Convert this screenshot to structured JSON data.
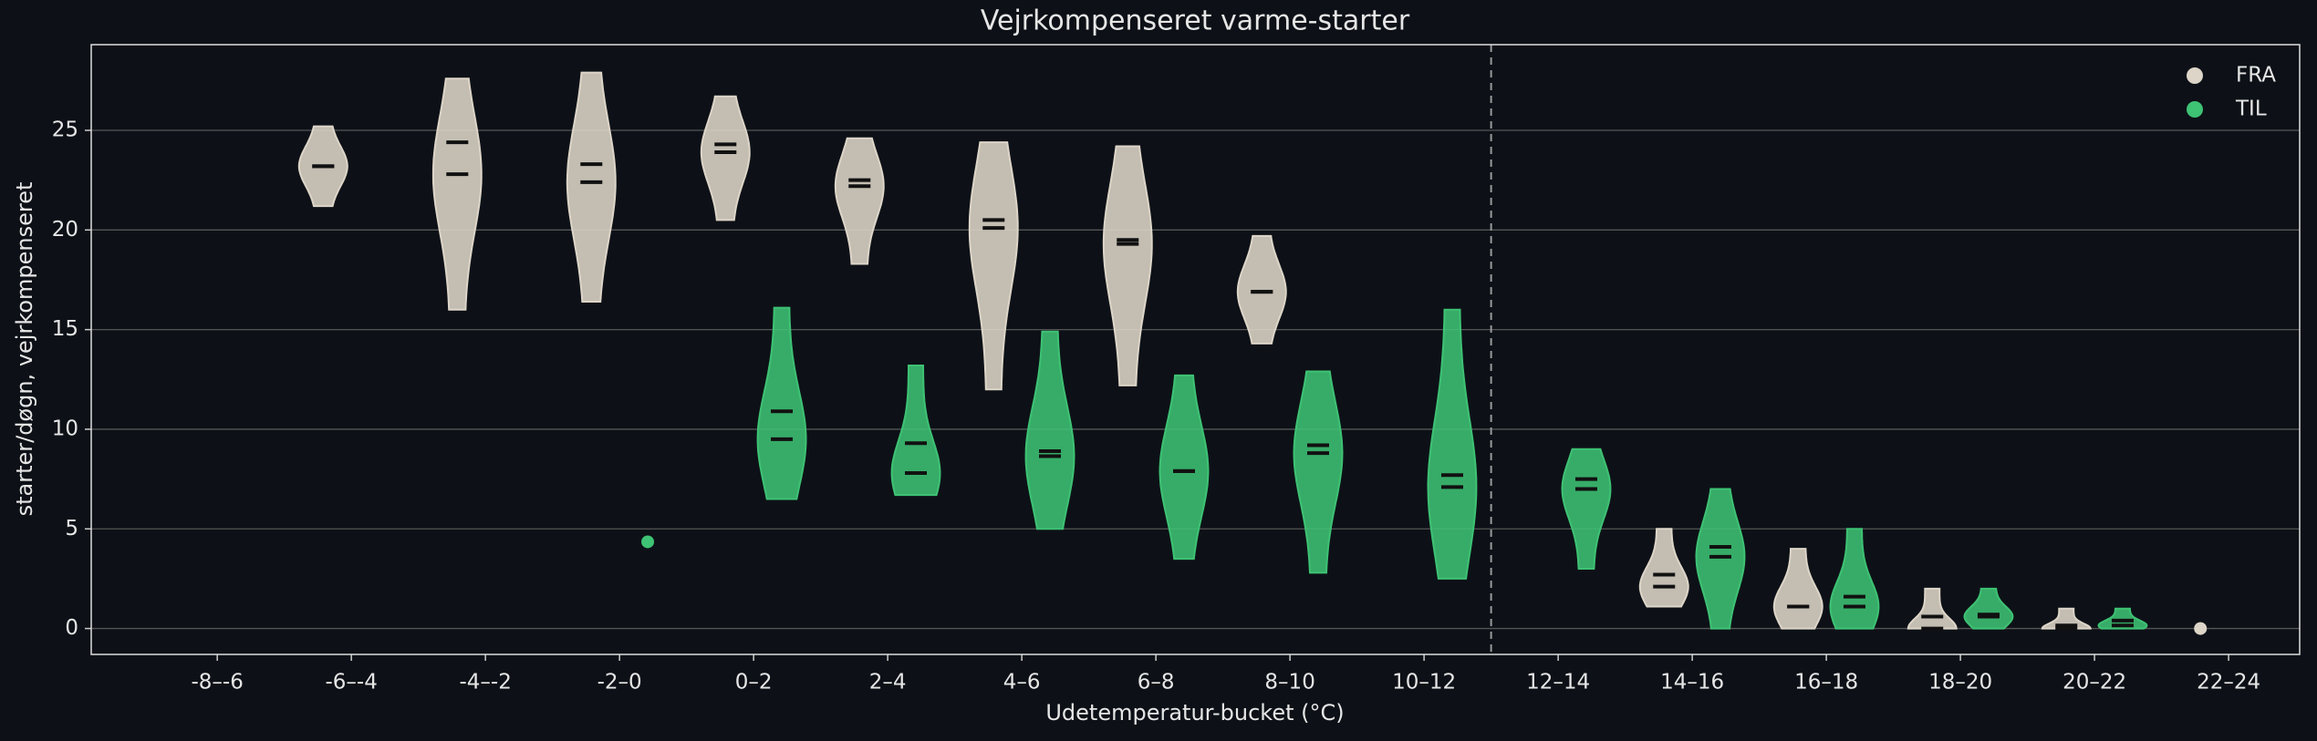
{
  "chart_data": {
    "type": "violin",
    "title": "Vejrkompenseret varme-starter",
    "xlabel": "Udetemperatur-bucket (°C)",
    "ylabel": "starter/døgn, vejrkompenseret",
    "categories": [
      "-8–-6",
      "-6–-4",
      "-4–-2",
      "-2–0",
      "0–2",
      "2–4",
      "4–6",
      "6–8",
      "8–10",
      "10–12",
      "12–14",
      "14–16",
      "16–18",
      "18–20",
      "20–22",
      "22–24"
    ],
    "ylim": [
      -1.3,
      29.3
    ],
    "yticks": [
      0,
      5,
      10,
      15,
      20,
      25
    ],
    "grid": true,
    "legend": "upper right",
    "vline_after_category": 9,
    "series": [
      {
        "name": "FRA",
        "color": "#ddd5c8",
        "stats": [
          null,
          {
            "min": 21.2,
            "max": 25.2,
            "mean": 23.2,
            "median": 23.2
          },
          {
            "min": 16.0,
            "max": 27.6,
            "mean": 24.4,
            "median": 22.8
          },
          {
            "min": 16.4,
            "max": 27.9,
            "mean": 23.3,
            "median": 22.4
          },
          {
            "min": 20.5,
            "max": 26.7,
            "mean": 24.3,
            "median": 23.9
          },
          {
            "min": 18.3,
            "max": 24.6,
            "mean": 22.5,
            "median": 22.2
          },
          {
            "min": 12.0,
            "max": 24.4,
            "mean": 20.5,
            "median": 20.1
          },
          {
            "min": 12.2,
            "max": 24.2,
            "mean": 19.5,
            "median": 19.3
          },
          {
            "min": 14.3,
            "max": 19.7,
            "mean": 16.9,
            "median": 16.9
          },
          null,
          null,
          {
            "min": 1.1,
            "max": 5.0,
            "mean": 2.7,
            "median": 2.1
          },
          {
            "min": 0,
            "max": 4.0,
            "mean": 1.1,
            "median": 1.1
          },
          {
            "min": 0,
            "max": 2.0,
            "mean": 0.6,
            "median": 0
          },
          {
            "min": 0,
            "max": 1.0,
            "mean": 0.15,
            "median": 0
          },
          {
            "min": 0,
            "max": 0,
            "mean": 0,
            "median": 0
          }
        ]
      },
      {
        "name": "TIL",
        "color": "#3ec274",
        "stats": [
          null,
          null,
          null,
          {
            "min": 4.35,
            "max": 4.35,
            "mean": 4.35,
            "median": 4.35
          },
          {
            "min": 6.5,
            "max": 16.1,
            "mean": 10.9,
            "median": 9.5
          },
          {
            "min": 6.7,
            "max": 13.2,
            "mean": 9.3,
            "median": 7.8
          },
          {
            "min": 5.0,
            "max": 14.9,
            "mean": 8.9,
            "median": 8.65
          },
          {
            "min": 3.5,
            "max": 12.7,
            "mean": 7.9,
            "median": 7.9
          },
          {
            "min": 2.8,
            "max": 12.9,
            "mean": 9.2,
            "median": 8.8
          },
          {
            "min": 2.5,
            "max": 16.0,
            "mean": 7.7,
            "median": 7.1
          },
          {
            "min": 3.0,
            "max": 9.0,
            "mean": 7.5,
            "median": 7.0
          },
          {
            "min": 0,
            "max": 7.0,
            "mean": 4.1,
            "median": 3.6
          },
          {
            "min": 0,
            "max": 5.0,
            "mean": 1.6,
            "median": 1.1
          },
          {
            "min": 0,
            "max": 2.0,
            "mean": 0.7,
            "median": 0.6
          },
          {
            "min": 0,
            "max": 1.0,
            "mean": 0.4,
            "median": 0.15
          },
          null
        ]
      }
    ]
  }
}
